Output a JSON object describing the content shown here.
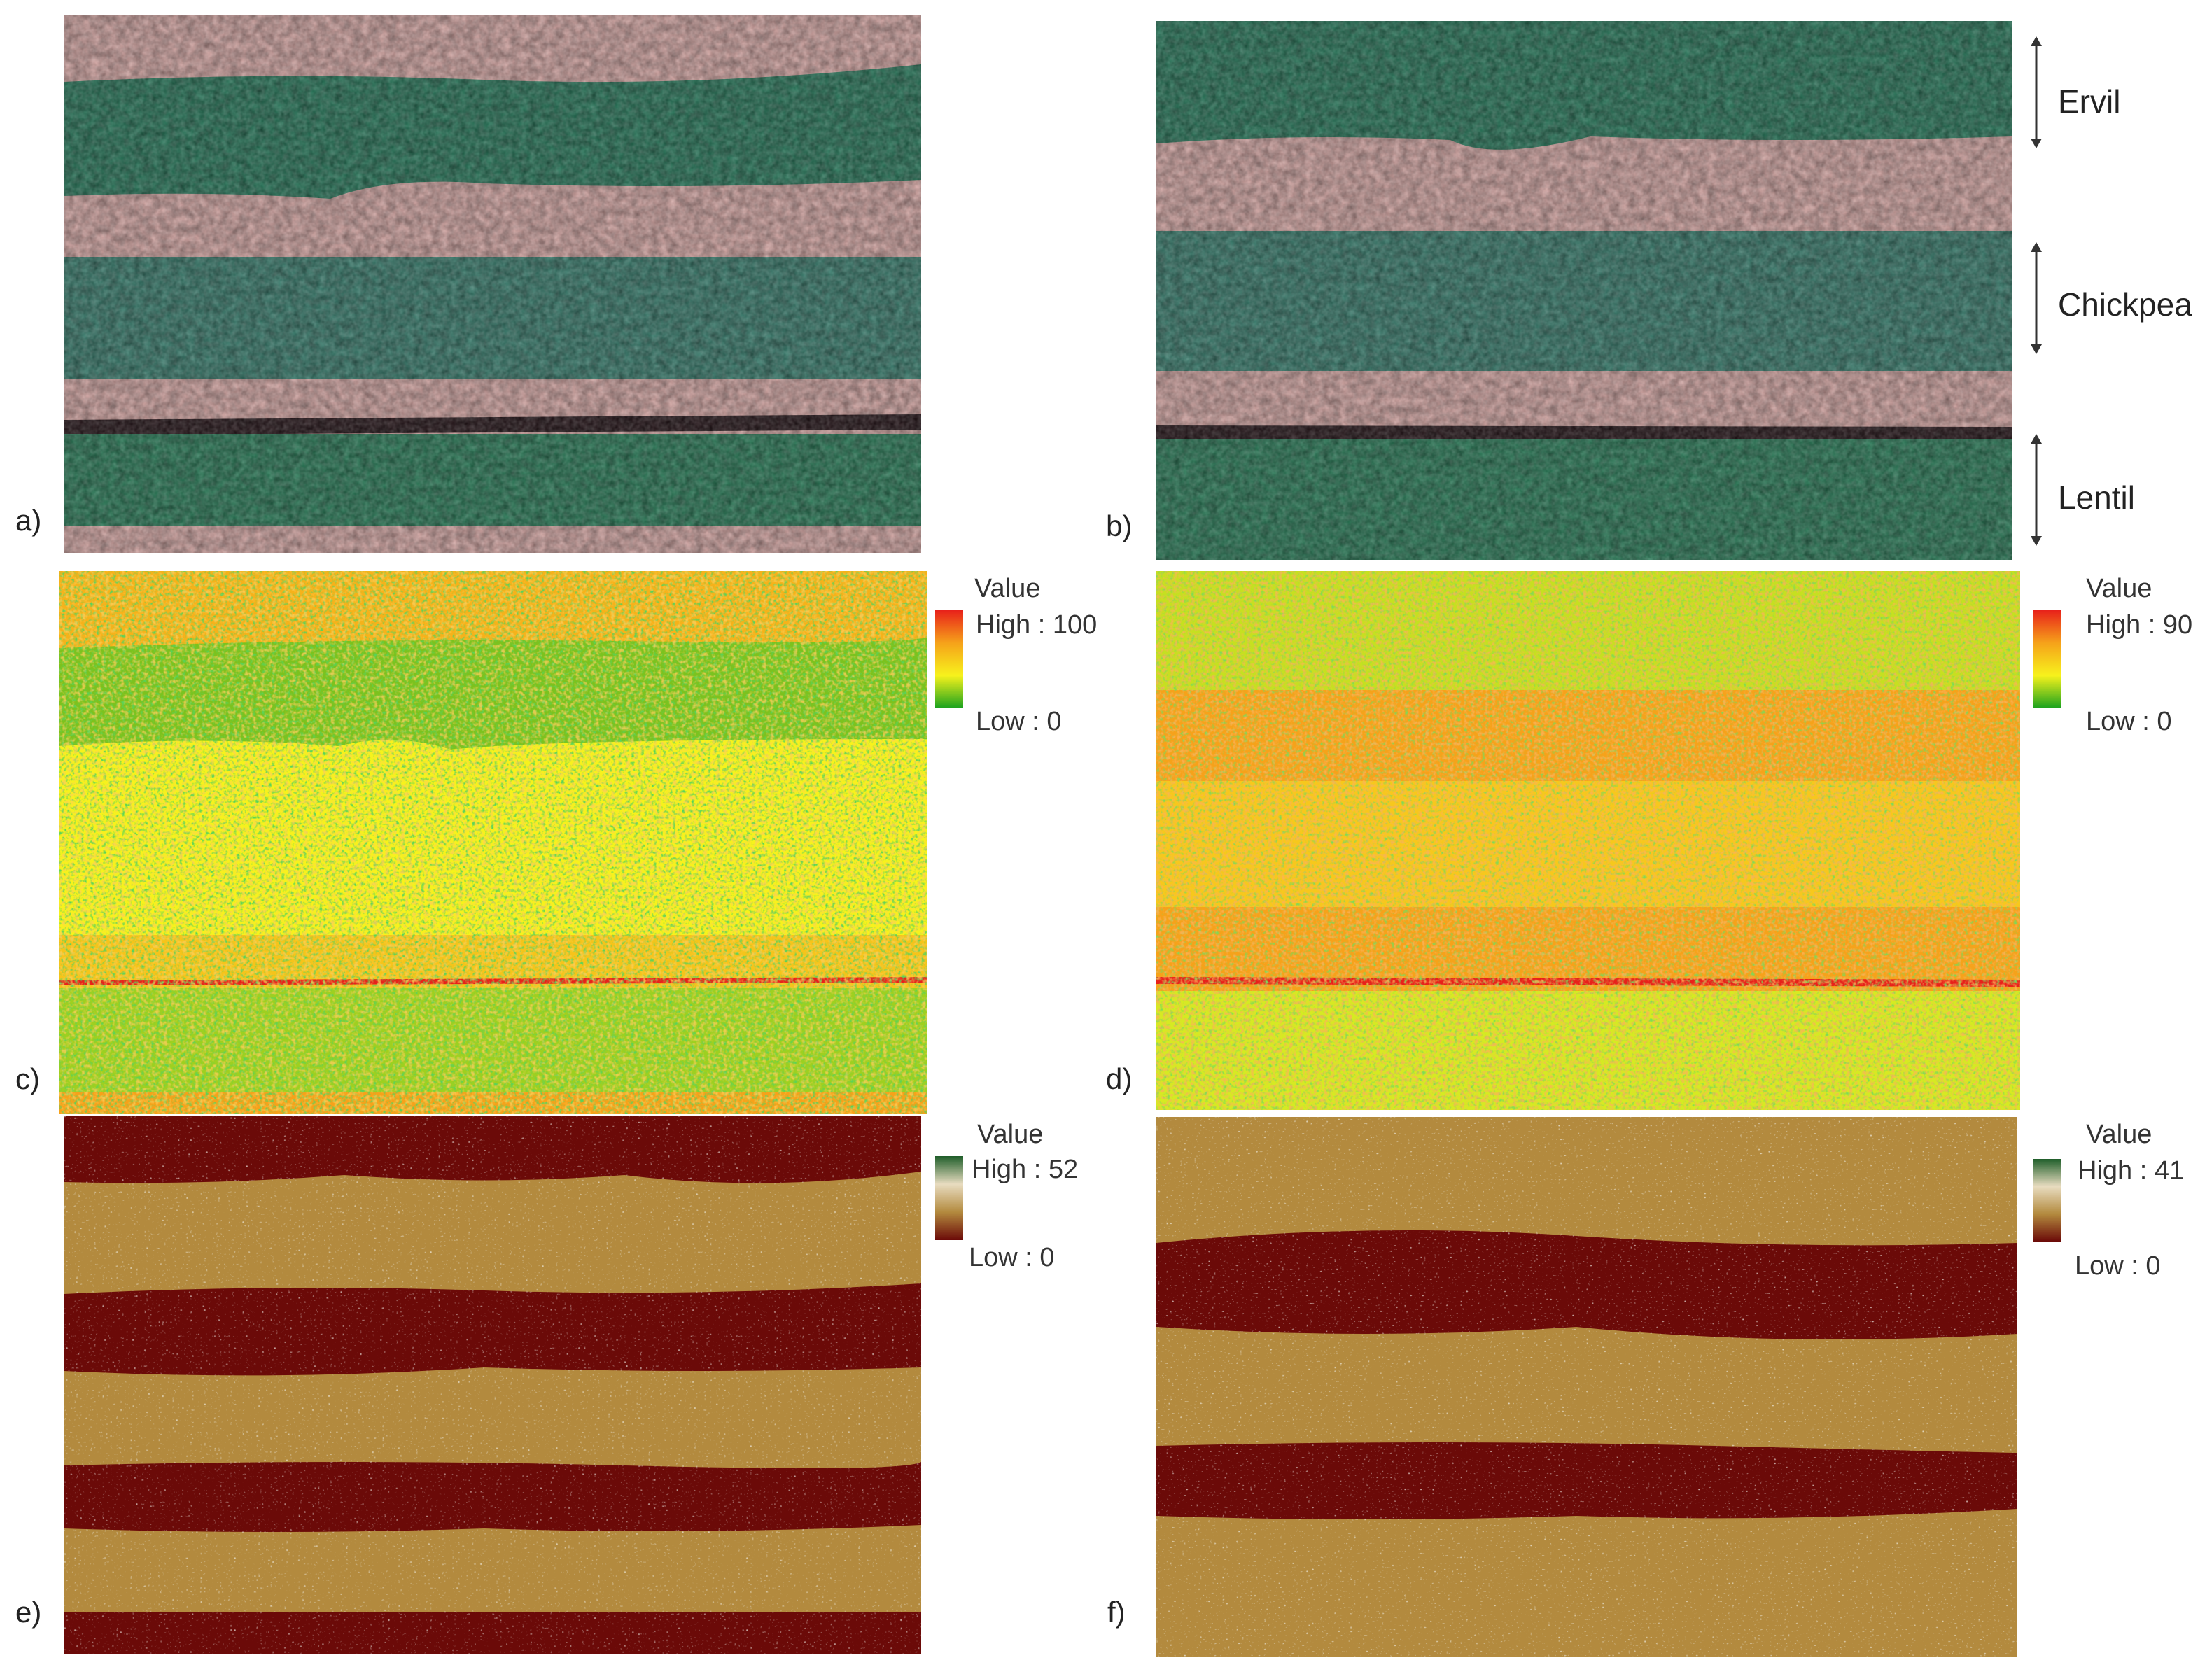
{
  "panels": [
    {
      "id": "a",
      "label": "a)",
      "kind": "rgb"
    },
    {
      "id": "b",
      "label": "b)",
      "kind": "rgb"
    },
    {
      "id": "c",
      "label": "c)",
      "kind": "heat",
      "legend": {
        "title": "Value",
        "high": "High : 100",
        "low": "Low : 0"
      }
    },
    {
      "id": "d",
      "label": "d)",
      "kind": "heat",
      "legend": {
        "title": "Value",
        "high": "High : 90",
        "low": "Low : 0"
      }
    },
    {
      "id": "e",
      "label": "e)",
      "kind": "brown",
      "legend": {
        "title": "Value",
        "high": "High : 52",
        "low": "Low : 0"
      }
    },
    {
      "id": "f",
      "label": "f)",
      "kind": "brown",
      "legend": {
        "title": "Value",
        "high": "High : 41",
        "low": "Low : 0"
      }
    }
  ],
  "crops": [
    "Ervil",
    "Chickpea",
    "Lentil"
  ],
  "colors": {
    "soil_pink": "#d8a8a8",
    "crop_green": "#2f7a5c",
    "heat_high": "#e8211a",
    "heat_mid_orange": "#f6a21a",
    "heat_mid_yellow": "#f7f21c",
    "heat_low": "#1aa21e",
    "brown_high": "#1f5e2a",
    "brown_mid": "#b38a3e",
    "brown_low": "#6b0a08"
  }
}
